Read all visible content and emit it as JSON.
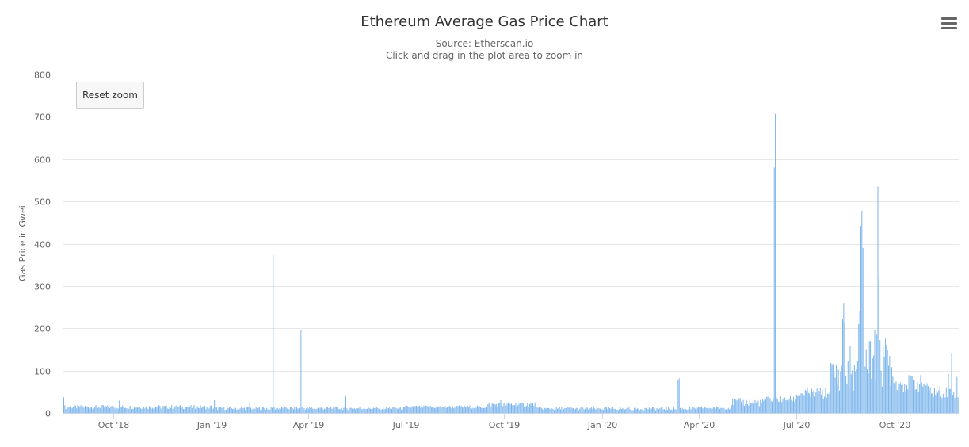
{
  "header": {
    "title": "Ethereum Average Gas Price Chart",
    "subtitle_source": "Source: Etherscan.io",
    "subtitle_hint": "Click and drag in the plot area to zoom in"
  },
  "toolbar": {
    "reset_zoom_label": "Reset zoom",
    "menu_icon": "hamburger-menu-icon"
  },
  "colors": {
    "bar": "#7cb5ec",
    "grid": "#e6e6e6",
    "axis": "#ccd6eb",
    "text": "#666666"
  },
  "chart_data": {
    "type": "bar",
    "title": "Ethereum Average Gas Price Chart",
    "subtitle": "Source: Etherscan.io",
    "xlabel": "",
    "ylabel": "Gas Price in Gwei",
    "x_start": "2018-08-15",
    "x_end": "2020-11-30",
    "ylim": [
      0,
      800
    ],
    "yticks": [
      0,
      100,
      200,
      300,
      400,
      500,
      600,
      700,
      800
    ],
    "xticks": [
      {
        "label": "Oct '18",
        "date": "2018-10-01"
      },
      {
        "label": "Jan '19",
        "date": "2019-01-01"
      },
      {
        "label": "Apr '19",
        "date": "2019-04-01"
      },
      {
        "label": "Jul '19",
        "date": "2019-07-01"
      },
      {
        "label": "Oct '19",
        "date": "2019-10-01"
      },
      {
        "label": "Jan '20",
        "date": "2020-01-01"
      },
      {
        "label": "Apr '20",
        "date": "2020-04-01"
      },
      {
        "label": "Jul '20",
        "date": "2020-07-01"
      },
      {
        "label": "Oct '20",
        "date": "2020-10-01"
      }
    ],
    "grid": true,
    "legend": "none",
    "segments": [
      {
        "from": "2018-08-15",
        "to": "2018-12-31",
        "base": 14,
        "jitter": 5
      },
      {
        "from": "2019-01-01",
        "to": "2019-06-30",
        "base": 11,
        "jitter": 4
      },
      {
        "from": "2019-07-01",
        "to": "2019-09-15",
        "base": 14,
        "jitter": 4
      },
      {
        "from": "2019-09-16",
        "to": "2019-10-31",
        "base": 20,
        "jitter": 6
      },
      {
        "from": "2019-11-01",
        "to": "2020-03-31",
        "base": 10,
        "jitter": 4
      },
      {
        "from": "2020-04-01",
        "to": "2020-04-30",
        "base": 12,
        "jitter": 4
      },
      {
        "from": "2020-05-01",
        "to": "2020-05-31",
        "base": 25,
        "jitter": 10
      },
      {
        "from": "2020-06-01",
        "to": "2020-06-30",
        "base": 32,
        "jitter": 8
      },
      {
        "from": "2020-07-01",
        "to": "2020-07-31",
        "base": 45,
        "jitter": 15
      },
      {
        "from": "2020-08-01",
        "to": "2020-08-31",
        "base": 90,
        "jitter": 40
      },
      {
        "from": "2020-09-01",
        "to": "2020-09-30",
        "base": 120,
        "jitter": 60
      },
      {
        "from": "2020-10-01",
        "to": "2020-10-31",
        "base": 70,
        "jitter": 20
      },
      {
        "from": "2020-11-01",
        "to": "2020-11-30",
        "base": 50,
        "jitter": 15
      }
    ],
    "points": [
      {
        "date": "2018-08-15",
        "value": 37
      },
      {
        "date": "2018-10-06",
        "value": 29
      },
      {
        "date": "2019-01-03",
        "value": 30
      },
      {
        "date": "2019-02-05",
        "value": 25
      },
      {
        "date": "2019-02-27",
        "value": 373
      },
      {
        "date": "2019-03-25",
        "value": 196
      },
      {
        "date": "2019-05-06",
        "value": 39
      },
      {
        "date": "2019-09-28",
        "value": 30
      },
      {
        "date": "2020-03-12",
        "value": 78
      },
      {
        "date": "2020-03-13",
        "value": 82
      },
      {
        "date": "2020-06-10",
        "value": 580
      },
      {
        "date": "2020-06-11",
        "value": 707
      },
      {
        "date": "2020-08-13",
        "value": 222
      },
      {
        "date": "2020-08-14",
        "value": 260
      },
      {
        "date": "2020-08-15",
        "value": 212
      },
      {
        "date": "2020-08-20",
        "value": 158
      },
      {
        "date": "2020-08-28",
        "value": 210
      },
      {
        "date": "2020-08-29",
        "value": 240
      },
      {
        "date": "2020-08-30",
        "value": 442
      },
      {
        "date": "2020-08-31",
        "value": 478
      },
      {
        "date": "2020-09-01",
        "value": 390
      },
      {
        "date": "2020-09-02",
        "value": 275
      },
      {
        "date": "2020-09-08",
        "value": 170
      },
      {
        "date": "2020-09-12",
        "value": 195
      },
      {
        "date": "2020-09-14",
        "value": 185
      },
      {
        "date": "2020-09-15",
        "value": 535
      },
      {
        "date": "2020-09-16",
        "value": 318
      },
      {
        "date": "2020-09-17",
        "value": 172
      },
      {
        "date": "2020-09-20",
        "value": 155
      },
      {
        "date": "2020-09-24",
        "value": 148
      },
      {
        "date": "2020-09-28",
        "value": 108
      },
      {
        "date": "2020-11-20",
        "value": 92
      },
      {
        "date": "2020-11-23",
        "value": 140
      },
      {
        "date": "2020-11-28",
        "value": 85
      }
    ]
  }
}
